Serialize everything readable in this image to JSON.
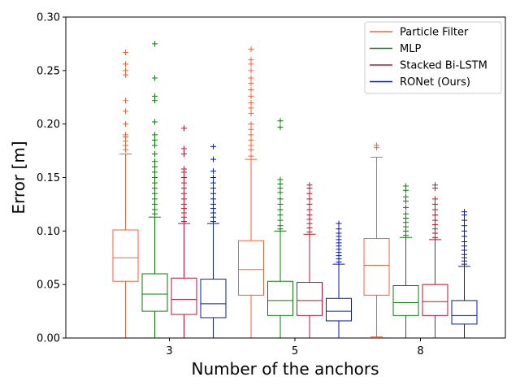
{
  "chart_data": {
    "type": "boxplot",
    "xlabel": "Number of the anchors",
    "ylabel": "Error [m]",
    "ylim": [
      0,
      0.3
    ],
    "yticks": [
      "0.00",
      "0.05",
      "0.10",
      "0.15",
      "0.20",
      "0.25",
      "0.30"
    ],
    "categories": [
      "3",
      "5",
      "8"
    ],
    "legend_position": "top-right",
    "grid": false,
    "series": [
      {
        "name": "Particle Filter",
        "color": "#f4623a",
        "boxes": [
          {
            "whislo": 0.0,
            "q1": 0.053,
            "med": 0.075,
            "q3": 0.101,
            "whishi": 0.172,
            "fliers": [
              0.176,
              0.18,
              0.184,
              0.188,
              0.19,
              0.2,
              0.212,
              0.222,
              0.246,
              0.25,
              0.256,
              0.267
            ]
          },
          {
            "whislo": 0.0,
            "q1": 0.04,
            "med": 0.064,
            "q3": 0.091,
            "whishi": 0.167,
            "fliers": [
              0.17,
              0.176,
              0.18,
              0.185,
              0.19,
              0.195,
              0.2,
              0.21,
              0.215,
              0.22,
              0.226,
              0.232,
              0.238,
              0.243,
              0.25,
              0.256,
              0.26,
              0.27
            ]
          },
          {
            "whislo": 0.001,
            "q1": 0.04,
            "med": 0.068,
            "q3": 0.093,
            "whishi": 0.169,
            "fliers": [
              0.178,
              0.18
            ]
          }
        ]
      },
      {
        "name": "MLP",
        "color": "#0a7d0a",
        "boxes": [
          {
            "whislo": 0.0,
            "q1": 0.025,
            "med": 0.041,
            "q3": 0.06,
            "whishi": 0.113,
            "fliers": [
              0.116,
              0.12,
              0.125,
              0.13,
              0.135,
              0.14,
              0.145,
              0.15,
              0.155,
              0.16,
              0.165,
              0.172,
              0.18,
              0.185,
              0.19,
              0.202,
              0.222,
              0.226,
              0.243,
              0.275
            ]
          },
          {
            "whislo": 0.0,
            "q1": 0.021,
            "med": 0.035,
            "q3": 0.053,
            "whishi": 0.1,
            "fliers": [
              0.102,
              0.105,
              0.11,
              0.115,
              0.12,
              0.125,
              0.13,
              0.136,
              0.14,
              0.144,
              0.148,
              0.197,
              0.203
            ]
          },
          {
            "whislo": 0.0,
            "q1": 0.021,
            "med": 0.033,
            "q3": 0.049,
            "whishi": 0.094,
            "fliers": [
              0.096,
              0.1,
              0.104,
              0.108,
              0.112,
              0.116,
              0.122,
              0.128,
              0.132,
              0.138,
              0.142
            ]
          }
        ]
      },
      {
        "name": "Stacked Bi-LSTM",
        "color": "#c0102b",
        "boxes": [
          {
            "whislo": 0.0,
            "q1": 0.022,
            "med": 0.036,
            "q3": 0.056,
            "whishi": 0.107,
            "fliers": [
              0.109,
              0.113,
              0.117,
              0.121,
              0.125,
              0.13,
              0.135,
              0.14,
              0.145,
              0.15,
              0.155,
              0.158,
              0.172,
              0.177,
              0.196
            ]
          },
          {
            "whislo": 0.0,
            "q1": 0.021,
            "med": 0.035,
            "q3": 0.052,
            "whishi": 0.097,
            "fliers": [
              0.099,
              0.103,
              0.107,
              0.111,
              0.115,
              0.12,
              0.125,
              0.13,
              0.135,
              0.14,
              0.143
            ]
          },
          {
            "whislo": 0.0,
            "q1": 0.021,
            "med": 0.034,
            "q3": 0.05,
            "whishi": 0.092,
            "fliers": [
              0.094,
              0.098,
              0.102,
              0.106,
              0.11,
              0.115,
              0.12,
              0.125,
              0.13,
              0.14,
              0.143
            ]
          }
        ]
      },
      {
        "name": "RONet (Ours)",
        "color": "#0a1aa0",
        "boxes": [
          {
            "whislo": 0.0,
            "q1": 0.019,
            "med": 0.032,
            "q3": 0.055,
            "whishi": 0.107,
            "fliers": [
              0.109,
              0.113,
              0.117,
              0.121,
              0.125,
              0.13,
              0.135,
              0.14,
              0.145,
              0.15,
              0.156,
              0.167,
              0.179
            ]
          },
          {
            "whislo": 0.0,
            "q1": 0.016,
            "med": 0.025,
            "q3": 0.037,
            "whishi": 0.069,
            "fliers": [
              0.071,
              0.074,
              0.077,
              0.08,
              0.083,
              0.086,
              0.089,
              0.092,
              0.095,
              0.098,
              0.102,
              0.107
            ]
          },
          {
            "whislo": 0.0,
            "q1": 0.013,
            "med": 0.021,
            "q3": 0.035,
            "whishi": 0.067,
            "fliers": [
              0.069,
              0.072,
              0.075,
              0.078,
              0.082,
              0.086,
              0.09,
              0.095,
              0.1,
              0.105,
              0.11,
              0.115,
              0.118
            ]
          }
        ]
      }
    ]
  }
}
